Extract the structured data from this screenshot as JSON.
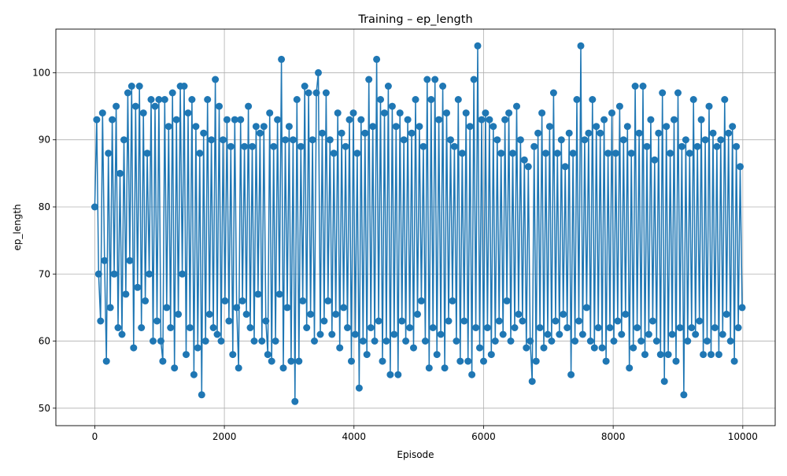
{
  "chart_data": {
    "type": "line",
    "title": "Training – ep_length",
    "xlabel": "Episode",
    "ylabel": "ep_length",
    "xlim": [
      -600,
      10500
    ],
    "ylim": [
      47.4,
      106.5
    ],
    "xticks": [
      0,
      2000,
      4000,
      6000,
      8000,
      10000
    ],
    "yticks": [
      50,
      60,
      70,
      80,
      90,
      100
    ],
    "grid": true,
    "legend": "none",
    "marker": "circle",
    "color": "#1f77b4",
    "x_range": [
      0,
      10000
    ],
    "series": [
      {
        "values": [
          [
            0,
            80
          ],
          [
            30,
            93
          ],
          [
            60,
            70
          ],
          [
            90,
            63
          ],
          [
            120,
            94
          ],
          [
            150,
            72
          ],
          [
            180,
            57
          ],
          [
            210,
            88
          ],
          [
            240,
            65
          ],
          [
            270,
            93
          ],
          [
            300,
            70
          ],
          [
            330,
            95
          ],
          [
            360,
            62
          ],
          [
            390,
            85
          ],
          [
            420,
            61
          ],
          [
            450,
            90
          ],
          [
            480,
            67
          ],
          [
            510,
            97
          ],
          [
            540,
            72
          ],
          [
            570,
            98
          ],
          [
            600,
            59
          ],
          [
            630,
            95
          ],
          [
            660,
            68
          ],
          [
            690,
            98
          ],
          [
            720,
            62
          ],
          [
            750,
            94
          ],
          [
            780,
            66
          ],
          [
            810,
            88
          ],
          [
            840,
            70
          ],
          [
            870,
            96
          ],
          [
            900,
            60
          ],
          [
            930,
            95
          ],
          [
            960,
            63
          ],
          [
            990,
            96
          ],
          [
            1020,
            60
          ],
          [
            1050,
            57
          ],
          [
            1080,
            96
          ],
          [
            1110,
            65
          ],
          [
            1140,
            92
          ],
          [
            1170,
            62
          ],
          [
            1200,
            97
          ],
          [
            1230,
            56
          ],
          [
            1260,
            93
          ],
          [
            1290,
            64
          ],
          [
            1320,
            98
          ],
          [
            1350,
            70
          ],
          [
            1380,
            98
          ],
          [
            1410,
            58
          ],
          [
            1440,
            94
          ],
          [
            1470,
            62
          ],
          [
            1500,
            96
          ],
          [
            1530,
            55
          ],
          [
            1560,
            92
          ],
          [
            1590,
            59
          ],
          [
            1620,
            88
          ],
          [
            1650,
            52
          ],
          [
            1680,
            91
          ],
          [
            1710,
            60
          ],
          [
            1740,
            96
          ],
          [
            1770,
            64
          ],
          [
            1800,
            90
          ],
          [
            1830,
            62
          ],
          [
            1860,
            99
          ],
          [
            1890,
            61
          ],
          [
            1920,
            95
          ],
          [
            1950,
            60
          ],
          [
            1980,
            90
          ],
          [
            2010,
            66
          ],
          [
            2040,
            93
          ],
          [
            2070,
            63
          ],
          [
            2100,
            89
          ],
          [
            2130,
            58
          ],
          [
            2160,
            93
          ],
          [
            2190,
            65
          ],
          [
            2220,
            56
          ],
          [
            2250,
            93
          ],
          [
            2280,
            66
          ],
          [
            2310,
            89
          ],
          [
            2340,
            64
          ],
          [
            2370,
            95
          ],
          [
            2400,
            62
          ],
          [
            2430,
            89
          ],
          [
            2460,
            60
          ],
          [
            2490,
            92
          ],
          [
            2520,
            67
          ],
          [
            2550,
            91
          ],
          [
            2580,
            60
          ],
          [
            2610,
            92
          ],
          [
            2640,
            63
          ],
          [
            2670,
            58
          ],
          [
            2700,
            94
          ],
          [
            2730,
            57
          ],
          [
            2760,
            89
          ],
          [
            2790,
            60
          ],
          [
            2820,
            93
          ],
          [
            2850,
            67
          ],
          [
            2880,
            102
          ],
          [
            2910,
            56
          ],
          [
            2940,
            90
          ],
          [
            2970,
            65
          ],
          [
            3000,
            92
          ],
          [
            3030,
            57
          ],
          [
            3060,
            90
          ],
          [
            3090,
            51
          ],
          [
            3120,
            96
          ],
          [
            3150,
            57
          ],
          [
            3180,
            89
          ],
          [
            3210,
            66
          ],
          [
            3240,
            98
          ],
          [
            3270,
            62
          ],
          [
            3300,
            97
          ],
          [
            3330,
            64
          ],
          [
            3360,
            90
          ],
          [
            3390,
            60
          ],
          [
            3420,
            97
          ],
          [
            3450,
            100
          ],
          [
            3480,
            61
          ],
          [
            3510,
            91
          ],
          [
            3540,
            63
          ],
          [
            3570,
            97
          ],
          [
            3600,
            66
          ],
          [
            3630,
            90
          ],
          [
            3660,
            61
          ],
          [
            3690,
            88
          ],
          [
            3720,
            64
          ],
          [
            3750,
            94
          ],
          [
            3780,
            59
          ],
          [
            3810,
            91
          ],
          [
            3840,
            65
          ],
          [
            3870,
            89
          ],
          [
            3900,
            62
          ],
          [
            3930,
            93
          ],
          [
            3960,
            57
          ],
          [
            3990,
            94
          ],
          [
            4020,
            61
          ],
          [
            4050,
            88
          ],
          [
            4080,
            53
          ],
          [
            4110,
            93
          ],
          [
            4140,
            60
          ],
          [
            4170,
            91
          ],
          [
            4200,
            58
          ],
          [
            4230,
            99
          ],
          [
            4260,
            62
          ],
          [
            4290,
            92
          ],
          [
            4320,
            60
          ],
          [
            4350,
            102
          ],
          [
            4380,
            63
          ],
          [
            4410,
            96
          ],
          [
            4440,
            57
          ],
          [
            4470,
            94
          ],
          [
            4500,
            60
          ],
          [
            4530,
            98
          ],
          [
            4560,
            55
          ],
          [
            4590,
            95
          ],
          [
            4620,
            61
          ],
          [
            4650,
            92
          ],
          [
            4680,
            55
          ],
          [
            4710,
            94
          ],
          [
            4740,
            63
          ],
          [
            4770,
            90
          ],
          [
            4800,
            60
          ],
          [
            4830,
            93
          ],
          [
            4860,
            62
          ],
          [
            4890,
            91
          ],
          [
            4920,
            59
          ],
          [
            4950,
            96
          ],
          [
            4980,
            64
          ],
          [
            5010,
            92
          ],
          [
            5040,
            66
          ],
          [
            5070,
            89
          ],
          [
            5100,
            60
          ],
          [
            5130,
            99
          ],
          [
            5160,
            56
          ],
          [
            5190,
            96
          ],
          [
            5220,
            62
          ],
          [
            5250,
            99
          ],
          [
            5280,
            58
          ],
          [
            5310,
            93
          ],
          [
            5340,
            61
          ],
          [
            5370,
            98
          ],
          [
            5400,
            56
          ],
          [
            5430,
            94
          ],
          [
            5460,
            63
          ],
          [
            5490,
            90
          ],
          [
            5520,
            66
          ],
          [
            5550,
            89
          ],
          [
            5580,
            60
          ],
          [
            5610,
            96
          ],
          [
            5640,
            57
          ],
          [
            5670,
            88
          ],
          [
            5700,
            63
          ],
          [
            5730,
            94
          ],
          [
            5760,
            57
          ],
          [
            5790,
            92
          ],
          [
            5820,
            55
          ],
          [
            5850,
            99
          ],
          [
            5880,
            62
          ],
          [
            5910,
            104
          ],
          [
            5940,
            59
          ],
          [
            5970,
            93
          ],
          [
            6000,
            57
          ],
          [
            6030,
            94
          ],
          [
            6060,
            62
          ],
          [
            6090,
            93
          ],
          [
            6120,
            58
          ],
          [
            6150,
            92
          ],
          [
            6180,
            60
          ],
          [
            6210,
            90
          ],
          [
            6240,
            63
          ],
          [
            6270,
            88
          ],
          [
            6300,
            61
          ],
          [
            6330,
            93
          ],
          [
            6360,
            66
          ],
          [
            6390,
            94
          ],
          [
            6420,
            60
          ],
          [
            6450,
            88
          ],
          [
            6480,
            62
          ],
          [
            6510,
            95
          ],
          [
            6540,
            64
          ],
          [
            6570,
            90
          ],
          [
            6600,
            63
          ],
          [
            6630,
            87
          ],
          [
            6660,
            59
          ],
          [
            6690,
            86
          ],
          [
            6720,
            60
          ],
          [
            6750,
            54
          ],
          [
            6780,
            89
          ],
          [
            6810,
            57
          ],
          [
            6840,
            91
          ],
          [
            6870,
            62
          ],
          [
            6900,
            94
          ],
          [
            6930,
            59
          ],
          [
            6960,
            88
          ],
          [
            6990,
            61
          ],
          [
            7020,
            92
          ],
          [
            7050,
            60
          ],
          [
            7080,
            97
          ],
          [
            7110,
            63
          ],
          [
            7140,
            88
          ],
          [
            7170,
            61
          ],
          [
            7200,
            90
          ],
          [
            7230,
            64
          ],
          [
            7260,
            86
          ],
          [
            7290,
            62
          ],
          [
            7320,
            91
          ],
          [
            7350,
            55
          ],
          [
            7380,
            88
          ],
          [
            7410,
            60
          ],
          [
            7440,
            96
          ],
          [
            7470,
            63
          ],
          [
            7500,
            104
          ],
          [
            7530,
            61
          ],
          [
            7560,
            90
          ],
          [
            7590,
            65
          ],
          [
            7620,
            91
          ],
          [
            7650,
            60
          ],
          [
            7680,
            96
          ],
          [
            7710,
            59
          ],
          [
            7740,
            92
          ],
          [
            7770,
            62
          ],
          [
            7800,
            91
          ],
          [
            7830,
            59
          ],
          [
            7860,
            93
          ],
          [
            7890,
            57
          ],
          [
            7920,
            88
          ],
          [
            7950,
            62
          ],
          [
            7980,
            94
          ],
          [
            8010,
            60
          ],
          [
            8040,
            88
          ],
          [
            8070,
            63
          ],
          [
            8100,
            95
          ],
          [
            8130,
            61
          ],
          [
            8160,
            90
          ],
          [
            8190,
            64
          ],
          [
            8220,
            92
          ],
          [
            8250,
            56
          ],
          [
            8280,
            88
          ],
          [
            8310,
            59
          ],
          [
            8340,
            98
          ],
          [
            8370,
            62
          ],
          [
            8400,
            91
          ],
          [
            8430,
            60
          ],
          [
            8460,
            98
          ],
          [
            8490,
            58
          ],
          [
            8520,
            89
          ],
          [
            8550,
            61
          ],
          [
            8580,
            93
          ],
          [
            8610,
            63
          ],
          [
            8640,
            87
          ],
          [
            8670,
            60
          ],
          [
            8700,
            91
          ],
          [
            8730,
            58
          ],
          [
            8760,
            97
          ],
          [
            8790,
            54
          ],
          [
            8820,
            92
          ],
          [
            8850,
            58
          ],
          [
            8880,
            88
          ],
          [
            8910,
            61
          ],
          [
            8940,
            93
          ],
          [
            8970,
            57
          ],
          [
            9000,
            97
          ],
          [
            9030,
            62
          ],
          [
            9060,
            89
          ],
          [
            9090,
            52
          ],
          [
            9120,
            90
          ],
          [
            9150,
            60
          ],
          [
            9180,
            88
          ],
          [
            9210,
            62
          ],
          [
            9240,
            96
          ],
          [
            9270,
            61
          ],
          [
            9300,
            89
          ],
          [
            9330,
            63
          ],
          [
            9360,
            93
          ],
          [
            9390,
            58
          ],
          [
            9420,
            90
          ],
          [
            9450,
            60
          ],
          [
            9480,
            95
          ],
          [
            9510,
            58
          ],
          [
            9540,
            91
          ],
          [
            9570,
            62
          ],
          [
            9600,
            89
          ],
          [
            9630,
            58
          ],
          [
            9660,
            90
          ],
          [
            9690,
            61
          ],
          [
            9720,
            96
          ],
          [
            9750,
            64
          ],
          [
            9780,
            91
          ],
          [
            9810,
            60
          ],
          [
            9840,
            92
          ],
          [
            9870,
            57
          ],
          [
            9900,
            89
          ],
          [
            9930,
            62
          ],
          [
            9960,
            86
          ],
          [
            9990,
            65
          ]
        ]
      }
    ]
  }
}
